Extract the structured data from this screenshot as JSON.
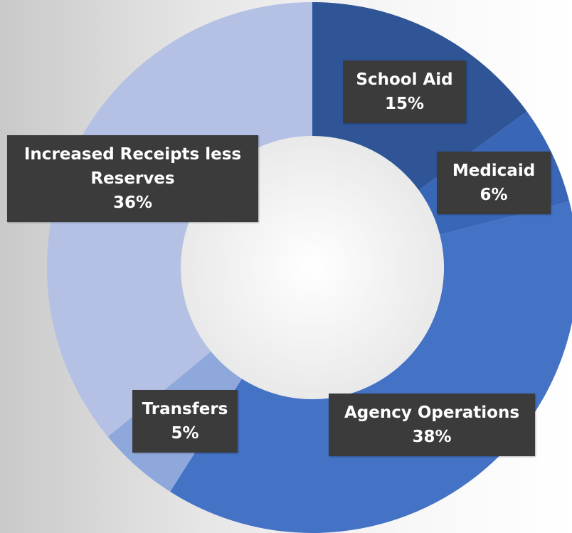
{
  "chart_data": {
    "type": "donut",
    "categories": [
      "School Aid",
      "Medicaid",
      "Agency Operations",
      "Transfers",
      "Increased Receipts less Reserves"
    ],
    "values": [
      15,
      6,
      38,
      5,
      36
    ],
    "value_labels": [
      "15%",
      "6%",
      "38%",
      "5%",
      "36%"
    ],
    "colors": [
      "#2f5597",
      "#3a66b8",
      "#4472c4",
      "#8fa8dc",
      "#b4c1e4"
    ]
  }
}
